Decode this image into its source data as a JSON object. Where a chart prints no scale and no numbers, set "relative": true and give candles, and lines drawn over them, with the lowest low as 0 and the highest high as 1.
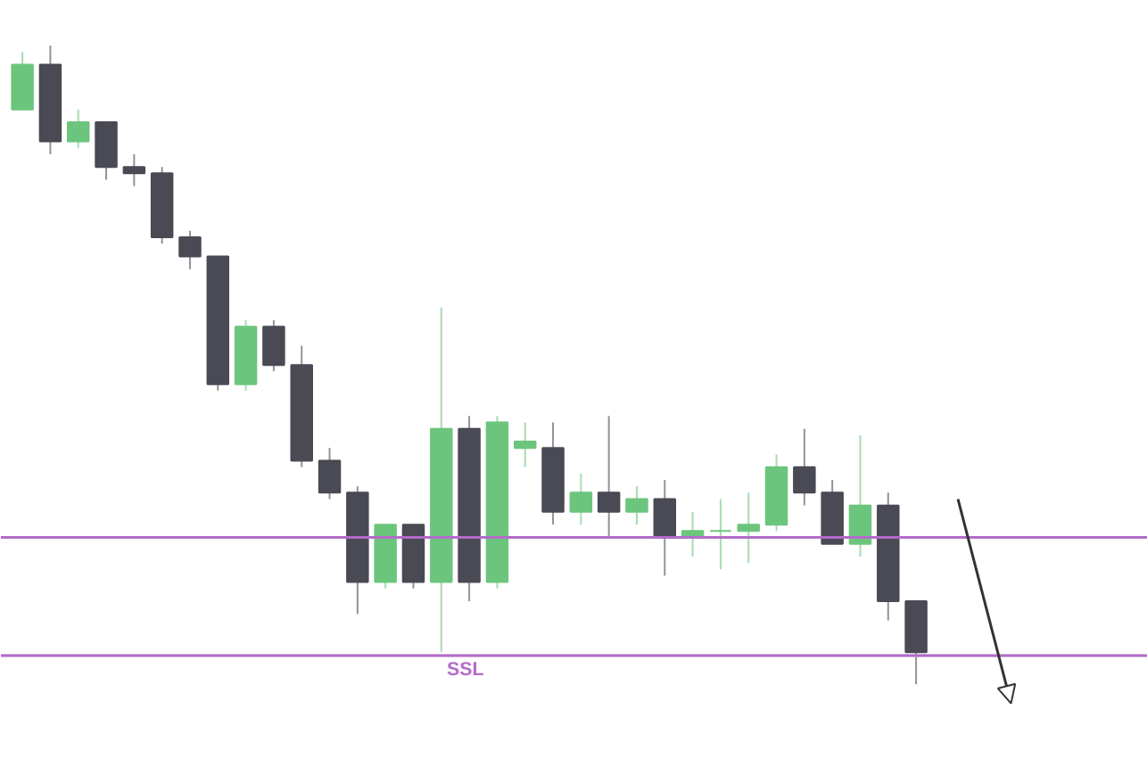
{
  "chart_data": {
    "type": "candlestick",
    "relative": true,
    "grid": false,
    "categories": [
      null,
      null,
      null,
      null,
      null,
      null,
      null,
      null,
      null,
      null,
      null,
      null,
      null,
      null,
      null,
      null,
      null,
      null,
      null,
      null,
      null,
      null,
      null,
      null,
      null,
      null,
      null,
      null,
      null,
      null,
      null,
      null,
      null
    ],
    "ohlc": [
      [
        0.9,
        0.99,
        0.9,
        0.97
      ],
      [
        0.97,
        1.0,
        0.83,
        0.85
      ],
      [
        0.85,
        0.9,
        0.84,
        0.88
      ],
      [
        0.88,
        0.88,
        0.79,
        0.81
      ],
      [
        0.81,
        0.83,
        0.78,
        0.8
      ],
      [
        0.8,
        0.81,
        0.69,
        0.7
      ],
      [
        0.7,
        0.71,
        0.65,
        0.67
      ],
      [
        0.67,
        0.67,
        0.46,
        0.47
      ],
      [
        0.47,
        0.57,
        0.46,
        0.56
      ],
      [
        0.56,
        0.57,
        0.49,
        0.5
      ],
      [
        0.5,
        0.53,
        0.34,
        0.35
      ],
      [
        0.35,
        0.37,
        0.29,
        0.3
      ],
      [
        0.3,
        0.31,
        0.11,
        0.16
      ],
      [
        0.16,
        0.25,
        0.15,
        0.25
      ],
      [
        0.25,
        0.25,
        0.15,
        0.16
      ],
      [
        0.16,
        0.59,
        0.05,
        0.4
      ],
      [
        0.4,
        0.42,
        0.13,
        0.16
      ],
      [
        0.16,
        0.42,
        0.15,
        0.41
      ],
      [
        0.37,
        0.41,
        0.34,
        0.38
      ],
      [
        0.37,
        0.41,
        0.25,
        0.27
      ],
      [
        0.27,
        0.33,
        0.25,
        0.3
      ],
      [
        0.3,
        0.42,
        0.23,
        0.27
      ],
      [
        0.27,
        0.31,
        0.25,
        0.29
      ],
      [
        0.29,
        0.32,
        0.17,
        0.23
      ],
      [
        0.23,
        0.27,
        0.2,
        0.24
      ],
      [
        0.24,
        0.29,
        0.18,
        0.24
      ],
      [
        0.24,
        0.3,
        0.19,
        0.25
      ],
      [
        0.25,
        0.36,
        0.24,
        0.34
      ],
      [
        0.34,
        0.4,
        0.28,
        0.3
      ],
      [
        0.3,
        0.32,
        0.22,
        0.22
      ],
      [
        0.22,
        0.39,
        0.2,
        0.28
      ],
      [
        0.28,
        0.3,
        0.1,
        0.13
      ],
      [
        0.13,
        0.13,
        0.0,
        0.05
      ]
    ],
    "colors": [
      "#6cc57c",
      "#4a4a55",
      "#6cc57c",
      "#4a4a55",
      "#4a4a55",
      "#4a4a55",
      "#4a4a55",
      "#4a4a55",
      "#6cc57c",
      "#4a4a55",
      "#4a4a55",
      "#4a4a55",
      "#4a4a55",
      "#6cc57c",
      "#4a4a55",
      "#6cc57c",
      "#4a4a55",
      "#6cc57c",
      "#6cc57c",
      "#4a4a55",
      "#6cc57c",
      "#4a4a55",
      "#6cc57c",
      "#4a4a55",
      "#6cc57c",
      "#6cc57c",
      "#6cc57c",
      "#6cc57c",
      "#4a4a55",
      "#4a4a55",
      "#6cc57c",
      "#4a4a55",
      "#4a4a55"
    ],
    "ref_lines": [
      {
        "axis": "y",
        "value": 0.045,
        "label": null,
        "color": "#dddddd"
      },
      {
        "axis": "y",
        "value": 0.23,
        "label": null,
        "color": "#b36bc9"
      },
      {
        "axis": "y",
        "value": 0.045,
        "label": "SSL",
        "color": "#b36bc9"
      }
    ]
  }
}
